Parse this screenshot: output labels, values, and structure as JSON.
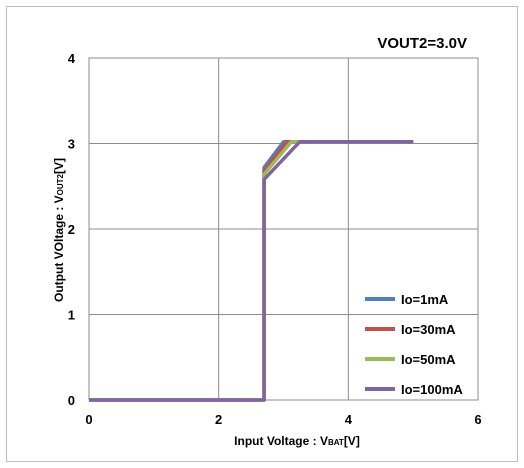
{
  "chart_data": {
    "type": "line",
    "title": "",
    "annotation": "VOUT2=3.0V",
    "xlabel": "Input Voltage : VBAT[V]",
    "ylabel": "Output VOltage : VOUT2[V]",
    "xlim": [
      0,
      6
    ],
    "ylim": [
      0,
      4
    ],
    "xticks": [
      0,
      2,
      4,
      6
    ],
    "yticks": [
      0,
      1,
      2,
      3,
      4
    ],
    "grid": true,
    "legend_position": "bottom-right",
    "series": [
      {
        "name": "Io=1mA",
        "color": "#4f81bd",
        "x": [
          0,
          2.7,
          2.7,
          3.0,
          5.0
        ],
        "y": [
          0,
          0,
          2.72,
          3.02,
          3.02
        ]
      },
      {
        "name": "Io=30mA",
        "color": "#c0504d",
        "x": [
          0,
          2.7,
          2.7,
          3.05,
          5.0
        ],
        "y": [
          0,
          0,
          2.68,
          3.02,
          3.02
        ]
      },
      {
        "name": "Io=50mA",
        "color": "#9bbb59",
        "x": [
          0,
          2.7,
          2.7,
          3.12,
          5.0
        ],
        "y": [
          0,
          0,
          2.64,
          3.02,
          3.02
        ]
      },
      {
        "name": "Io=100mA",
        "color": "#8064a2",
        "x": [
          0,
          2.7,
          2.7,
          3.25,
          5.0
        ],
        "y": [
          0,
          0,
          2.58,
          3.02,
          3.02
        ]
      }
    ]
  }
}
